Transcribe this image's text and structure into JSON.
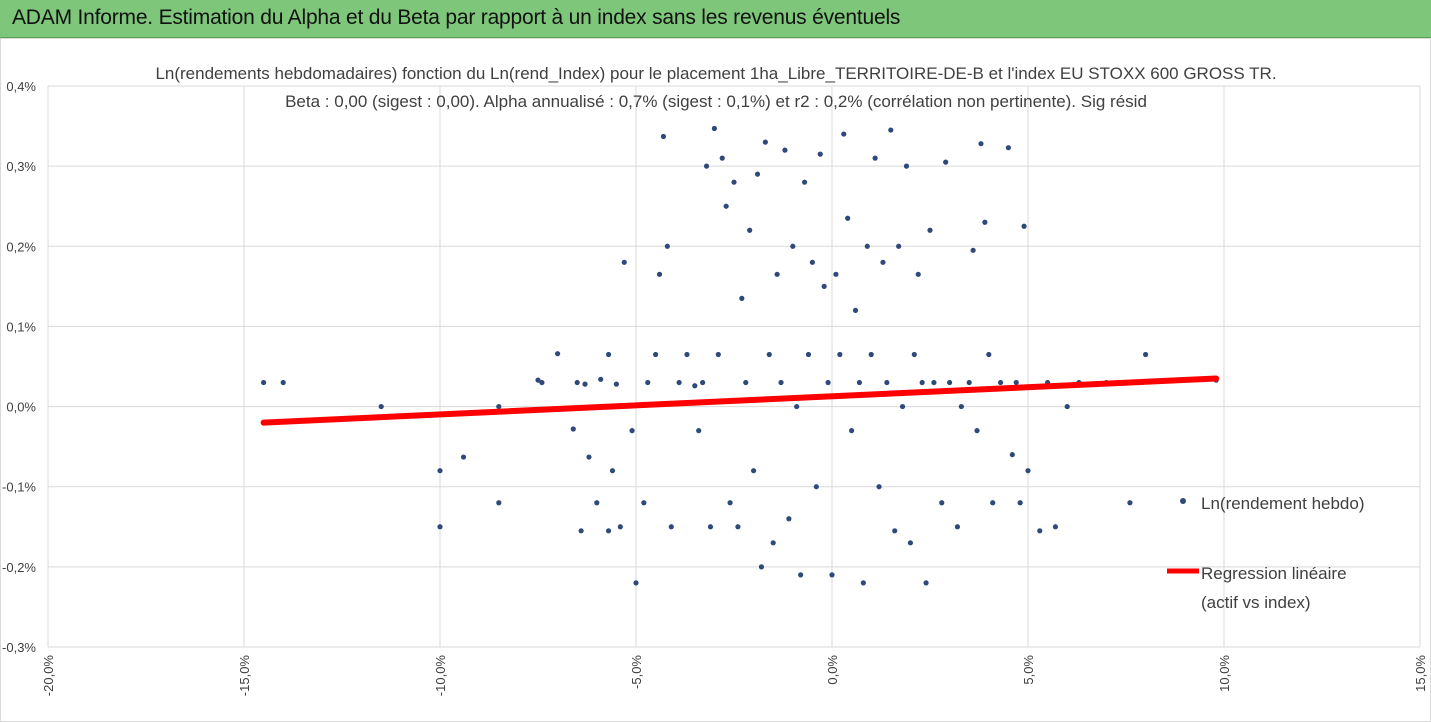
{
  "header": {
    "title": "ADAM Informe. Estimation du Alpha et du Beta par rapport à un index sans les revenus éventuels",
    "background": "#7dc67a",
    "accent": "#f2b100"
  },
  "chart_data": {
    "type": "scatter",
    "title": "Ln(rendements hebdomadaires) fonction du Ln(rend_Index) pour le placement 1ha_Libre_TERRITOIRE-DE-B et l'index EU STOXX 600 GROSS TR.",
    "subtitle": "Beta : 0,00 (sigest : 0,00). Alpha annualisé : 0,7% (sigest : 0,1%) et r2 : 0,2% (corrélation non pertinente). Sig résid",
    "xlabel": "",
    "ylabel": "",
    "xlim": [
      -20,
      15
    ],
    "ylim": [
      -0.3,
      0.4
    ],
    "x_ticks": [
      -20,
      -15,
      -10,
      -5,
      0,
      5,
      10,
      15
    ],
    "x_tick_labels": [
      "-20,0%",
      "-15,0%",
      "-10,0%",
      "-5,0%",
      "0,0%",
      "5,0%",
      "10,0%",
      "15,0%"
    ],
    "y_ticks": [
      0.4,
      0.3,
      0.2,
      0.1,
      0.0,
      -0.1,
      -0.2,
      -0.3
    ],
    "y_tick_labels": [
      "0,4%",
      "0,3%",
      "0,2%",
      "0,1%",
      "0,0%",
      "-0,1%",
      "-0,2%",
      "-0,3%"
    ],
    "grid": true,
    "legend_position": "right",
    "series": [
      {
        "name": "Ln(rendement hebdo)",
        "kind": "scatter",
        "color": "#2f4a7a",
        "points": [
          [
            -14.5,
            0.03
          ],
          [
            -14,
            0.03
          ],
          [
            -11.5,
            0.0
          ],
          [
            -10,
            -0.08
          ],
          [
            -10,
            -0.15
          ],
          [
            -9.4,
            -0.063
          ],
          [
            -8.5,
            -0.12
          ],
          [
            -8.5,
            0.0
          ],
          [
            -7.5,
            0.033
          ],
          [
            -7.4,
            0.03
          ],
          [
            -7,
            0.066
          ],
          [
            -6.6,
            -0.028
          ],
          [
            -6.5,
            0.03
          ],
          [
            -6.4,
            -0.155
          ],
          [
            -6.3,
            0.028
          ],
          [
            -6.2,
            -0.063
          ],
          [
            -6,
            -0.12
          ],
          [
            -5.9,
            0.034
          ],
          [
            -5.9,
            -0.0
          ],
          [
            -5.7,
            0.065
          ],
          [
            -5.7,
            -0.155
          ],
          [
            -5.6,
            -0.08
          ],
          [
            -5.5,
            0.028
          ],
          [
            -5.4,
            -0.15
          ],
          [
            -5.3,
            0.18
          ],
          [
            -5.1,
            -0.03
          ],
          [
            -5,
            -0.22
          ],
          [
            -4.8,
            -0.12
          ],
          [
            -4.7,
            0.03
          ],
          [
            -4.5,
            0.065
          ],
          [
            -4.4,
            0.165
          ],
          [
            -4.3,
            0.337
          ],
          [
            -4.2,
            0.2
          ],
          [
            -4.1,
            -0.15
          ],
          [
            -3.9,
            0.03
          ],
          [
            -3.7,
            0.065
          ],
          [
            -3.5,
            0.026
          ],
          [
            -3.4,
            -0.03
          ],
          [
            -3.3,
            0.03
          ],
          [
            -3.2,
            0.3
          ],
          [
            -3.1,
            -0.15
          ],
          [
            -3,
            0.347
          ],
          [
            -2.9,
            0.065
          ],
          [
            -2.8,
            0.31
          ],
          [
            -2.7,
            0.25
          ],
          [
            -2.6,
            -0.12
          ],
          [
            -2.5,
            0.28
          ],
          [
            -2.4,
            -0.15
          ],
          [
            -2.3,
            0.135
          ],
          [
            -2.2,
            0.03
          ],
          [
            -2.1,
            0.22
          ],
          [
            -2,
            -0.08
          ],
          [
            -1.9,
            0.29
          ],
          [
            -1.8,
            -0.2
          ],
          [
            -1.7,
            0.33
          ],
          [
            -1.6,
            0.065
          ],
          [
            -1.5,
            -0.17
          ],
          [
            -1.4,
            0.165
          ],
          [
            -1.3,
            0.03
          ],
          [
            -1.2,
            0.32
          ],
          [
            -1.1,
            -0.14
          ],
          [
            -1,
            0.2
          ],
          [
            -0.9,
            0.0
          ],
          [
            -0.8,
            -0.21
          ],
          [
            -0.7,
            0.28
          ],
          [
            -0.6,
            0.065
          ],
          [
            -0.5,
            0.18
          ],
          [
            -0.4,
            -0.1
          ],
          [
            -0.3,
            0.315
          ],
          [
            -0.2,
            0.15
          ],
          [
            -0.1,
            0.03
          ],
          [
            0,
            -0.21
          ],
          [
            0.1,
            0.165
          ],
          [
            0.2,
            0.065
          ],
          [
            0.3,
            0.34
          ],
          [
            0.4,
            0.235
          ],
          [
            0.5,
            -0.03
          ],
          [
            0.6,
            0.12
          ],
          [
            0.7,
            0.03
          ],
          [
            0.8,
            -0.22
          ],
          [
            0.9,
            0.2
          ],
          [
            1,
            0.065
          ],
          [
            1.1,
            0.31
          ],
          [
            1.2,
            -0.1
          ],
          [
            1.3,
            0.18
          ],
          [
            1.4,
            0.03
          ],
          [
            1.5,
            0.345
          ],
          [
            1.6,
            -0.155
          ],
          [
            1.7,
            0.2
          ],
          [
            1.8,
            0.0
          ],
          [
            1.9,
            0.3
          ],
          [
            2,
            -0.17
          ],
          [
            2.1,
            0.065
          ],
          [
            2.2,
            0.165
          ],
          [
            2.3,
            0.03
          ],
          [
            2.4,
            -0.22
          ],
          [
            2.5,
            0.22
          ],
          [
            2.6,
            0.03
          ],
          [
            2.8,
            -0.12
          ],
          [
            2.9,
            0.305
          ],
          [
            3,
            0.03
          ],
          [
            3.2,
            -0.15
          ],
          [
            3.3,
            0.0
          ],
          [
            3.5,
            0.03
          ],
          [
            3.6,
            0.195
          ],
          [
            3.7,
            -0.03
          ],
          [
            3.8,
            0.328
          ],
          [
            3.9,
            0.23
          ],
          [
            4,
            0.065
          ],
          [
            4.1,
            -0.12
          ],
          [
            4.3,
            0.03
          ],
          [
            4.5,
            0.323
          ],
          [
            4.6,
            -0.06
          ],
          [
            4.7,
            0.03
          ],
          [
            4.8,
            -0.12
          ],
          [
            4.9,
            0.225
          ],
          [
            5,
            -0.08
          ],
          [
            5.3,
            -0.155
          ],
          [
            5.5,
            0.03
          ],
          [
            5.7,
            -0.15
          ],
          [
            6,
            0.0
          ],
          [
            6.3,
            0.03
          ],
          [
            7,
            0.03
          ],
          [
            7.6,
            -0.12
          ],
          [
            8,
            0.065
          ],
          [
            9.8,
            0.033
          ]
        ]
      },
      {
        "name": "Regression linéaire (actif vs index)",
        "kind": "line",
        "color": "#ff0000",
        "points": [
          [
            -14.5,
            -0.02
          ],
          [
            9.8,
            0.035
          ]
        ]
      }
    ]
  }
}
